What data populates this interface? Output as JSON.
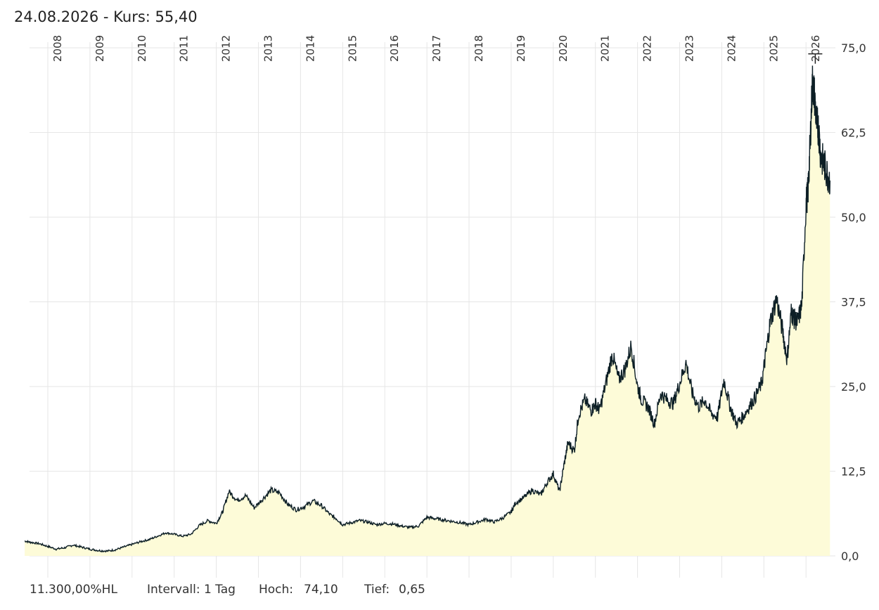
{
  "header": {
    "date": "24.08.2026",
    "price_label": " - Kurs: 55,40"
  },
  "footer": {
    "performance": "11.300,00%HL",
    "interval": "Intervall: 1 Tag",
    "high_label": "Hoch:",
    "high_value": "74,10",
    "low_label": "Tief:",
    "low_value": "0,65"
  },
  "chart_data": {
    "type": "area",
    "title": "",
    "xlabel": "",
    "ylabel": "",
    "ylim": [
      0,
      75
    ],
    "y_ticks": [
      "0,0",
      "12,5",
      "25,0",
      "37,5",
      "50,0",
      "62,5",
      "75,0"
    ],
    "x_ticks": [
      "2008",
      "2009",
      "2010",
      "2011",
      "2012",
      "2013",
      "2014",
      "2015",
      "2016",
      "2017",
      "2018",
      "2019",
      "2020",
      "2021",
      "2022",
      "2023",
      "2024",
      "2025",
      "2026"
    ],
    "grid": true,
    "colors": {
      "line": "#0d1f26",
      "fill": "#fdfbd8",
      "grid": "#e6e6e6"
    },
    "series": [
      {
        "x": [
          2007.45,
          2007.6,
          2007.8,
          2008.0,
          2008.2,
          2008.4,
          2008.6,
          2008.8,
          2009.0,
          2009.2,
          2009.4,
          2009.6,
          2009.8,
          2010.0,
          2010.2,
          2010.4,
          2010.6,
          2010.8,
          2011.0,
          2011.2,
          2011.4,
          2011.6,
          2011.8,
          2012.0,
          2012.15,
          2012.3,
          2012.5,
          2012.7,
          2012.9,
          2013.1,
          2013.3,
          2013.5,
          2013.7,
          2013.9,
          2014.1,
          2014.3,
          2014.5,
          2014.7,
          2014.85,
          2015.0,
          2015.2,
          2015.4,
          2015.6,
          2015.8,
          2016.0,
          2016.2,
          2016.4,
          2016.6,
          2016.8,
          2017.0,
          2017.2,
          2017.4,
          2017.6,
          2017.8,
          2018.0,
          2018.2,
          2018.4,
          2018.6,
          2018.8,
          2019.0,
          2019.1,
          2019.3,
          2019.5,
          2019.7,
          2019.85,
          2020.0,
          2020.15,
          2020.25,
          2020.35,
          2020.5,
          2020.6,
          2020.75,
          2020.9,
          2021.0,
          2021.1,
          2021.25,
          2021.4,
          2021.55,
          2021.7,
          2021.85,
          2022.0,
          2022.1,
          2022.25,
          2022.4,
          2022.55,
          2022.7,
          2022.85,
          2023.0,
          2023.15,
          2023.3,
          2023.45,
          2023.6,
          2023.75,
          2023.9,
          2024.05,
          2024.2,
          2024.35,
          2024.5,
          2024.65,
          2024.8,
          2024.95,
          2025.05,
          2025.15,
          2025.3,
          2025.45,
          2025.55,
          2025.65,
          2025.72,
          2025.8,
          2025.9,
          2026.0,
          2026.05,
          2026.1,
          2026.15,
          2026.2,
          2026.25,
          2026.3,
          2026.35,
          2026.42,
          2026.5,
          2026.57
        ],
        "y": [
          2.2,
          2.0,
          1.8,
          1.4,
          1.0,
          1.2,
          1.6,
          1.3,
          1.0,
          0.8,
          0.7,
          0.9,
          1.3,
          1.7,
          2.1,
          2.4,
          2.9,
          3.4,
          3.2,
          2.9,
          3.2,
          4.5,
          5.2,
          4.8,
          6.5,
          9.5,
          8.2,
          8.9,
          7.1,
          8.4,
          9.7,
          9.3,
          7.6,
          6.8,
          7.3,
          8.1,
          7.4,
          6.1,
          5.5,
          4.6,
          4.9,
          5.2,
          5.0,
          4.6,
          4.8,
          4.7,
          4.4,
          4.2,
          4.4,
          5.7,
          5.5,
          5.3,
          5.1,
          4.9,
          4.6,
          5.0,
          5.4,
          5.0,
          5.6,
          6.5,
          7.8,
          8.6,
          9.7,
          9.0,
          10.8,
          12.1,
          9.5,
          13.3,
          16.7,
          15.5,
          20.8,
          23.0,
          21.4,
          22.5,
          21.5,
          25.5,
          29.8,
          26.0,
          27.5,
          31.0,
          25.0,
          23.0,
          22.0,
          19.5,
          24.0,
          23.0,
          22.5,
          25.5,
          28.5,
          24.0,
          22.0,
          23.0,
          21.0,
          20.5,
          26.0,
          22.0,
          19.5,
          20.5,
          22.0,
          23.5,
          25.5,
          30.0,
          34.5,
          38.0,
          33.0,
          29.0,
          36.0,
          35.0,
          34.5,
          37.0,
          52.0,
          54.0,
          61.0,
          70.0,
          68.0,
          64.0,
          63.0,
          59.0,
          58.0,
          56.5,
          55.4
        ]
      }
    ],
    "high": 74.1,
    "low": 0.65,
    "last": 55.4
  }
}
